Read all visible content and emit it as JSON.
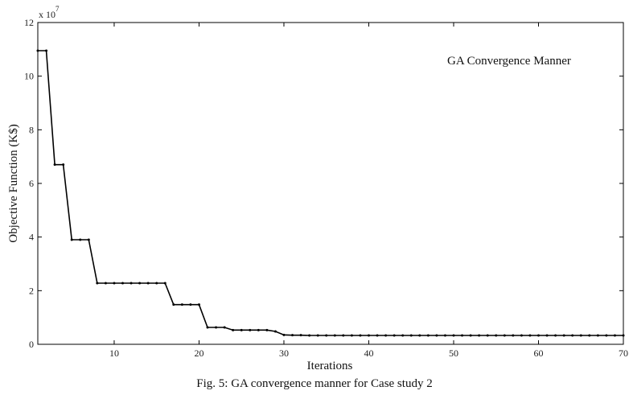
{
  "chart_data": {
    "type": "line",
    "annotation": "GA Convergence Manner",
    "xlabel": "Iterations",
    "ylabel": "Objective Function (K$)",
    "y_multiplier_label": "x 10",
    "y_multiplier_exponent": "7",
    "xlim": [
      1,
      70
    ],
    "ylim": [
      0,
      12
    ],
    "xticks": [
      10,
      20,
      30,
      40,
      50,
      60,
      70
    ],
    "yticks": [
      0,
      2,
      4,
      6,
      8,
      10,
      12
    ],
    "grid": false,
    "markers": "dots",
    "series": [
      {
        "color": "#000000",
        "x": [
          1,
          2,
          3,
          4,
          5,
          6,
          7,
          8,
          9,
          10,
          11,
          12,
          13,
          14,
          15,
          16,
          17,
          18,
          19,
          20,
          21,
          22,
          23,
          24,
          25,
          26,
          27,
          28,
          29,
          30,
          31,
          32,
          33,
          34,
          35,
          36,
          37,
          38,
          39,
          40,
          41,
          42,
          43,
          44,
          45,
          46,
          47,
          48,
          49,
          50,
          51,
          52,
          53,
          54,
          55,
          56,
          57,
          58,
          59,
          60,
          61,
          62,
          63,
          64,
          65,
          66,
          67,
          68,
          69,
          70
        ],
        "y": [
          10.95,
          10.95,
          6.7,
          6.7,
          3.9,
          3.9,
          3.9,
          2.28,
          2.28,
          2.28,
          2.28,
          2.28,
          2.28,
          2.28,
          2.28,
          2.28,
          1.48,
          1.48,
          1.48,
          1.48,
          0.63,
          0.63,
          0.63,
          0.53,
          0.53,
          0.53,
          0.53,
          0.53,
          0.48,
          0.35,
          0.34,
          0.34,
          0.33,
          0.33,
          0.33,
          0.33,
          0.33,
          0.33,
          0.33,
          0.33,
          0.33,
          0.33,
          0.33,
          0.33,
          0.33,
          0.33,
          0.33,
          0.33,
          0.33,
          0.33,
          0.33,
          0.33,
          0.33,
          0.33,
          0.33,
          0.33,
          0.33,
          0.33,
          0.33,
          0.33,
          0.33,
          0.33,
          0.33,
          0.33,
          0.33,
          0.33,
          0.33,
          0.33,
          0.33,
          0.33
        ]
      }
    ]
  },
  "caption": "Fig. 5: GA convergence manner for Case study 2"
}
